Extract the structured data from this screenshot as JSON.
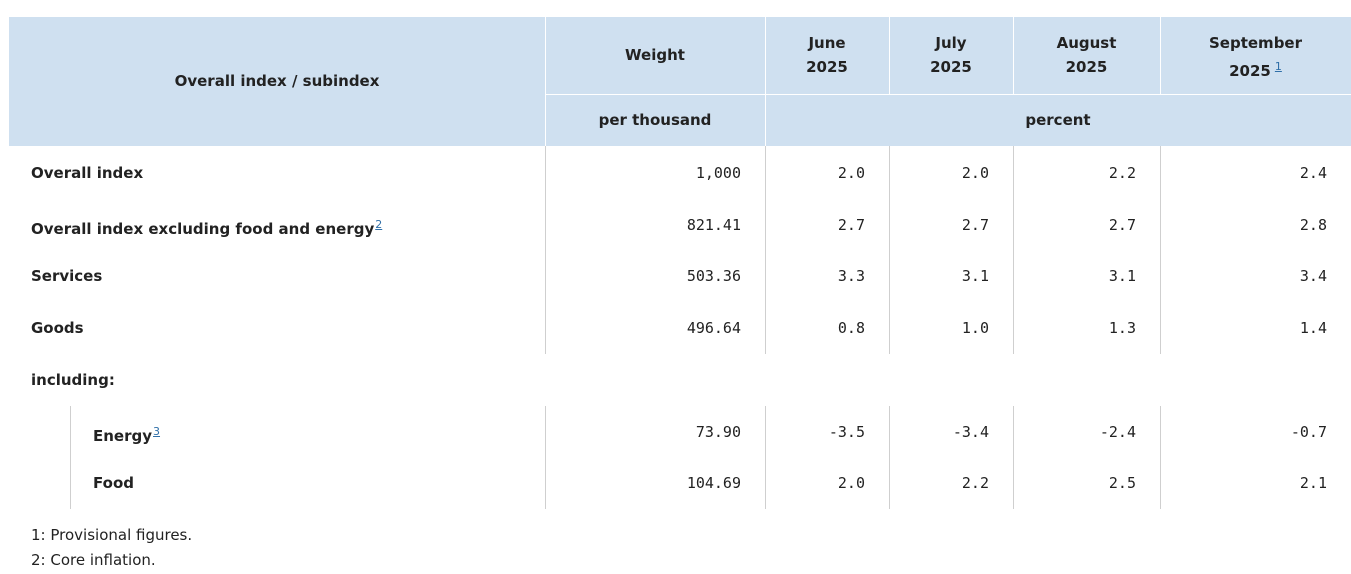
{
  "table": {
    "header": {
      "label": "Overall index / subindex",
      "weight": "Weight",
      "periods": [
        {
          "month": "June",
          "year": "2025"
        },
        {
          "month": "July",
          "year": "2025"
        },
        {
          "month": "August",
          "year": "2025"
        },
        {
          "month": "September",
          "year": "2025",
          "note": "1"
        }
      ],
      "weight_unit": "per thousand",
      "period_unit": "percent"
    },
    "rows": [
      {
        "label": "Overall index",
        "cells": [
          "1,000",
          "2.0",
          "2.0",
          "2.2",
          "2.4"
        ]
      },
      {
        "label": "Overall index excluding food and energy",
        "note": "2",
        "cells": [
          "821.41",
          "2.7",
          "2.7",
          "2.7",
          "2.8"
        ]
      },
      {
        "label": "Services",
        "cells": [
          "503.36",
          "3.3",
          "3.1",
          "3.1",
          "3.4"
        ]
      },
      {
        "label": "Goods",
        "cells": [
          "496.64",
          "0.8",
          "1.0",
          "1.3",
          "1.4"
        ]
      }
    ],
    "group": {
      "label": "including:",
      "rows": [
        {
          "label": "Energy",
          "note": "3",
          "cells": [
            "73.90",
            "-3.5",
            "-3.4",
            "-2.4",
            "-0.7"
          ]
        },
        {
          "label": "Food",
          "cells": [
            "104.69",
            "2.0",
            "2.2",
            "2.5",
            "2.1"
          ]
        }
      ]
    },
    "footnotes": [
      "1: Provisional figures.",
      "2: Core inflation."
    ]
  }
}
